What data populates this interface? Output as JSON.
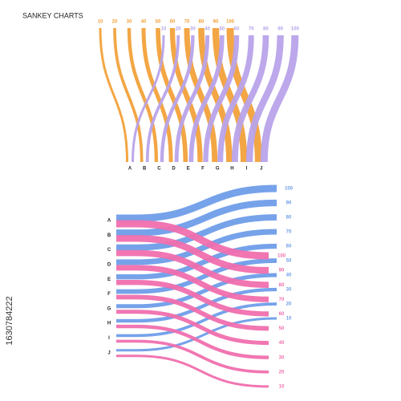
{
  "chart_data": [
    {
      "type": "sankey",
      "title": "SANKEY CHARTS",
      "direction": "down",
      "categories": [
        "A",
        "B",
        "C",
        "D",
        "E",
        "F",
        "G",
        "H",
        "I",
        "J"
      ],
      "series": [
        {
          "color": "#f2a13a",
          "values": [
            10,
            20,
            30,
            40,
            50,
            60,
            70,
            80,
            90,
            100
          ]
        },
        {
          "color": "#b8a3ea",
          "values": [
            10,
            20,
            30,
            40,
            50,
            60,
            70,
            80,
            90,
            100
          ]
        }
      ]
    },
    {
      "type": "sankey",
      "direction": "right",
      "categories": [
        "A",
        "B",
        "C",
        "D",
        "E",
        "F",
        "G",
        "H",
        "I",
        "J"
      ],
      "series": [
        {
          "color": "#6f9de9",
          "values": [
            100,
            90,
            80,
            70,
            60,
            50,
            40,
            30,
            20,
            10
          ]
        },
        {
          "color": "#f06fae",
          "values": [
            100,
            90,
            80,
            70,
            60,
            50,
            40,
            30,
            20,
            10
          ]
        }
      ]
    }
  ],
  "watermark_id": "1630784222"
}
